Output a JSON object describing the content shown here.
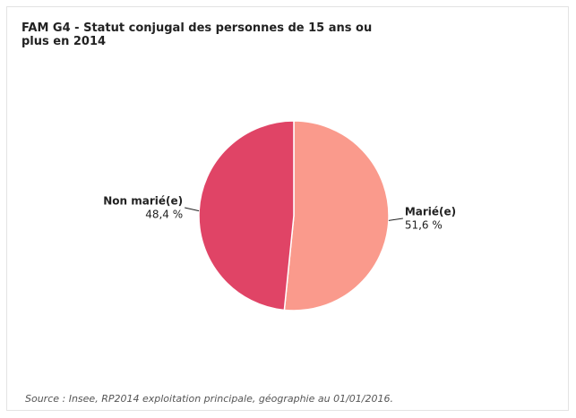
{
  "chart_data": {
    "type": "pie",
    "title": "FAM G4 - Statut conjugal des personnes de 15 ans ou plus en 2014",
    "categories": [
      "Marié(e)",
      "Non marié(e)"
    ],
    "values": [
      51.6,
      48.4
    ],
    "value_labels": [
      "51,6 %",
      "48,4 %"
    ],
    "colors": [
      "#fa9a8c",
      "#e04466"
    ],
    "source": "Source : Insee, RP2014 exploitation principale, géographie au 01/01/2016."
  }
}
